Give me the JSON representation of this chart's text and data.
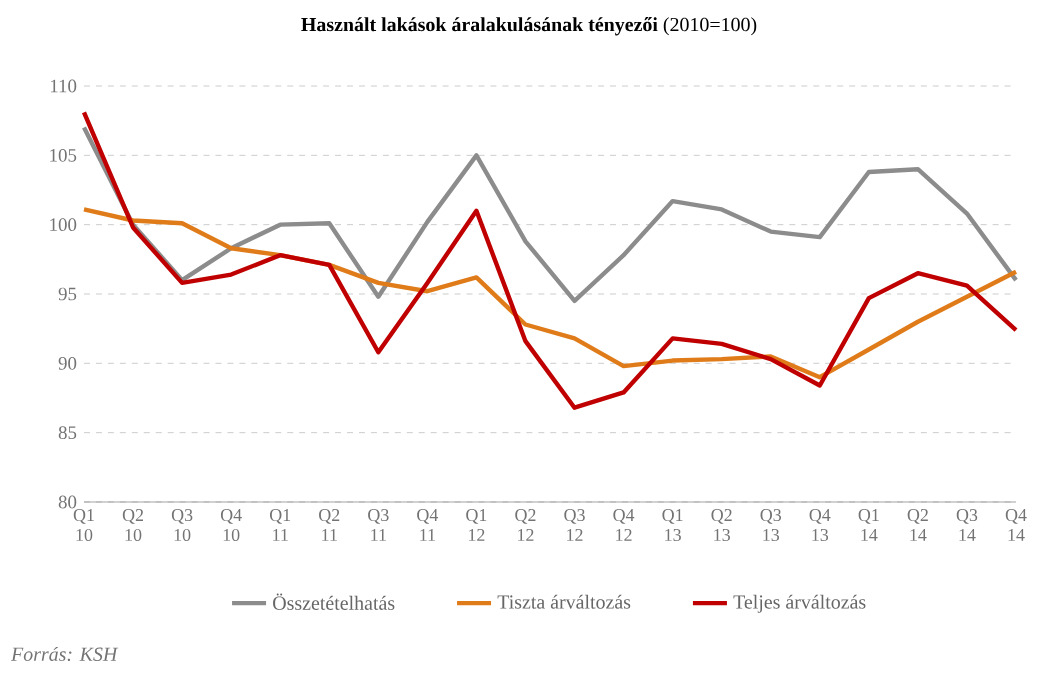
{
  "chart_data": {
    "type": "line",
    "title": "**Használt lakások áralakulásának tényezői** (2010=100)",
    "categories": [
      "Q1 10",
      "Q2 10",
      "Q3 10",
      "Q4 10",
      "Q1 11",
      "Q2 11",
      "Q3 11",
      "Q4 11",
      "Q1 12",
      "Q2 12",
      "Q3 12",
      "Q4 12",
      "Q1 13",
      "Q2 13",
      "Q3 13",
      "Q4 13",
      "Q1 14",
      "Q2 14",
      "Q3 14",
      "Q4 14"
    ],
    "series": [
      {
        "name": "Összetételhatás",
        "color": "#8c8c8c",
        "values": [
          107,
          100,
          96,
          98.3,
          100,
          100.1,
          94.8,
          100.2,
          105,
          98.8,
          94.5,
          97.8,
          101.7,
          101.1,
          99.5,
          99.1,
          103.8,
          104,
          100.8,
          96
        ]
      },
      {
        "name": "Tiszta árváltozás",
        "color": "#e07b1a",
        "values": [
          101.1,
          100.3,
          100.1,
          98.3,
          97.8,
          97.1,
          95.8,
          95.2,
          96.2,
          92.8,
          91.8,
          89.8,
          90.2,
          90.3,
          90.5,
          89,
          91,
          93,
          94.8,
          96.6
        ]
      },
      {
        "name": "Teljes árváltozás",
        "color": "#c00000",
        "values": [
          108.1,
          99.8,
          95.8,
          96.4,
          97.8,
          97.1,
          90.8,
          95.8,
          101,
          91.6,
          86.8,
          87.9,
          91.8,
          91.4,
          90.3,
          88.4,
          94.7,
          96.5,
          95.6,
          92.4
        ]
      }
    ],
    "ylim": [
      80,
      110
    ],
    "yticks": [
      80,
      85,
      90,
      95,
      100,
      105,
      110
    ],
    "grid": "y",
    "legend": "bottom",
    "marker": "none",
    "line_style": "solid",
    "annotations": [
      "Forrás: KSH"
    ]
  }
}
